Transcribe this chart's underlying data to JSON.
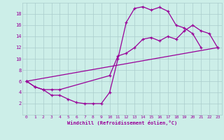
{
  "xlabel": "Windchill (Refroidissement éolien,°C)",
  "bg_color": "#cceee8",
  "grid_color": "#aacccc",
  "line_color": "#990099",
  "xlim": [
    -0.5,
    23.5
  ],
  "ylim": [
    0,
    20
  ],
  "xticks": [
    0,
    1,
    2,
    3,
    4,
    5,
    6,
    7,
    8,
    9,
    10,
    11,
    12,
    13,
    14,
    15,
    16,
    17,
    18,
    19,
    20,
    21,
    22,
    23
  ],
  "yticks": [
    2,
    4,
    6,
    8,
    10,
    12,
    14,
    16,
    18
  ],
  "series1_x": [
    0,
    1,
    2,
    3,
    4,
    5,
    6,
    7,
    8,
    9,
    10,
    11,
    12,
    13,
    14,
    15,
    16,
    17,
    18,
    19,
    20,
    21
  ],
  "series1_y": [
    6.0,
    5.0,
    4.5,
    3.5,
    3.5,
    2.8,
    2.2,
    2.0,
    2.0,
    2.0,
    4.0,
    10.0,
    16.5,
    19.0,
    19.3,
    18.7,
    19.2,
    18.5,
    16.0,
    15.5,
    14.5,
    12.0
  ],
  "series2_x": [
    0,
    1,
    2,
    3,
    4,
    10,
    11,
    12,
    13,
    14,
    15,
    16,
    17,
    18,
    19,
    20,
    21,
    22,
    23
  ],
  "series2_y": [
    6.0,
    5.0,
    4.5,
    4.5,
    4.5,
    7.0,
    10.5,
    11.0,
    12.0,
    13.5,
    13.8,
    13.2,
    14.0,
    13.5,
    15.0,
    16.0,
    15.0,
    14.5,
    12.0
  ],
  "series3_x": [
    0,
    23
  ],
  "series3_y": [
    6.0,
    12.0
  ]
}
